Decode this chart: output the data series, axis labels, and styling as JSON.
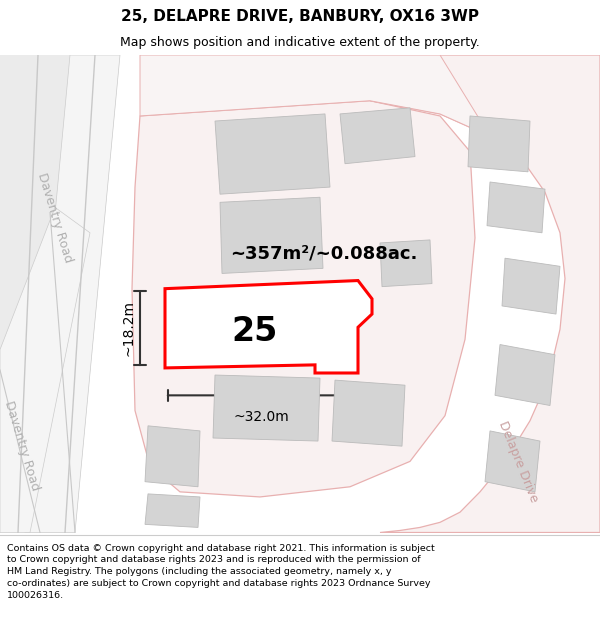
{
  "title": "25, DELAPRE DRIVE, BANBURY, OX16 3WP",
  "subtitle": "Map shows position and indicative extent of the property.",
  "footer": "Contains OS data © Crown copyright and database right 2021. This information is subject to Crown copyright and database rights 2023 and is reproduced with the permission of HM Land Registry. The polygons (including the associated geometry, namely x, y co-ordinates) are subject to Crown copyright and database rights 2023 Ordnance Survey 100026316.",
  "area_label": "~357m²/~0.088ac.",
  "plot_number": "25",
  "dim_width": "~32.0m",
  "dim_height": "~18.2m",
  "map_bg": "#f7f7f7",
  "road_fill": "#f9f1f1",
  "road_edge": "#e8b0b0",
  "building_color": "#d4d4d4",
  "building_edge": "#bbbbbb",
  "highlight_color": "#ff0000",
  "daventry_road_color": "#bbbbbb",
  "delapre_drive_color": "#ccaaaa",
  "title_fontsize": 11,
  "subtitle_fontsize": 9,
  "footer_fontsize": 6.8,
  "area_fontsize": 13,
  "plot_num_fontsize": 24,
  "dim_fontsize": 10,
  "road_label_fontsize": 9
}
